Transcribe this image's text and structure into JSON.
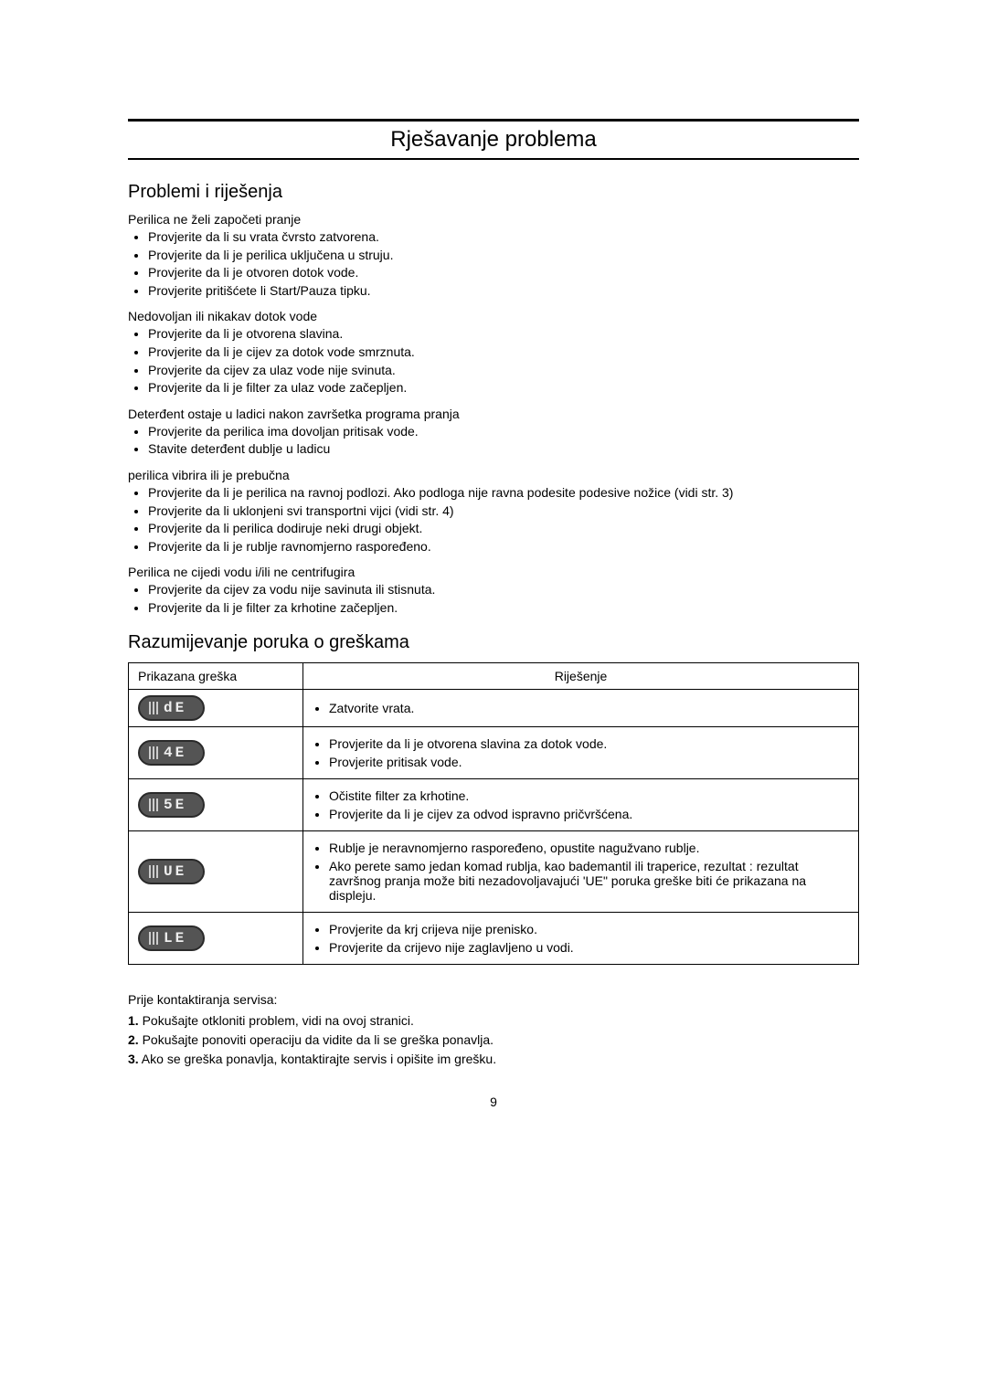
{
  "pageTitle": "Rješavanje problema",
  "section1": {
    "heading": "Problemi i riješenja",
    "problems": [
      {
        "title": "Perilica ne želi započeti pranje",
        "items": [
          "Provjerite da li su vrata čvrsto zatvorena.",
          "Provjerite da   li je perilica uključena u struju.",
          "Provjerite da li je otvoren dotok vode.",
          "Provjerite pritišćete li Start/Pauza tipku."
        ]
      },
      {
        "title": "Nedovoljan ili nikakav dotok vode",
        "items": [
          "Provjerite da li je otvorena slavina.",
          "Provjerite da li je cijev za dotok vode smrznuta.",
          "Provjerite da cijev za ulaz vode nije svinuta.",
          "Provjerite da li je filter za ulaz vode začepljen."
        ]
      },
      {
        "title": "Deterđent ostaje u ladici nakon završetka programa pranja",
        "items": [
          "Provjerite da perilica ima dovoljan pritisak vode.",
          "Stavite deterđent dublje u ladicu"
        ]
      },
      {
        "title": "perilica vibrira ili je prebučna",
        "items": [
          "Provjerite da li je perilica na ravnoj podlozi. Ako podloga nije ravna podesite podesive nožice (vidi str. 3)",
          "Provjerite da li uklonjeni svi transportni vijci (vidi str. 4)",
          "Provjerite da li perilica dodiruje neki drugi objekt.",
          "Provjerite da li je rublje ravnomjerno raspoređeno."
        ]
      },
      {
        "title": "Perilica ne cijedi vodu i/ili ne centrifugira",
        "items": [
          "Provjerite da cijev za vodu nije savinuta ili stisnuta.",
          "Provjerite da li je filter za krhotine začepljen."
        ]
      }
    ]
  },
  "section2": {
    "heading": "Razumijevanje poruka o greškama",
    "tableHeaders": {
      "error": "Prikazana greška",
      "solution": "Riješenje"
    },
    "rows": [
      {
        "code": "dE",
        "solutions": [
          "Zatvorite vrata."
        ]
      },
      {
        "code": "4E",
        "solutions": [
          "Provjerite da li je otvorena slavina za dotok vode.",
          "Provjerite pritisak vode."
        ]
      },
      {
        "code": "5E",
        "solutions": [
          "Očistite filter za krhotine.",
          "Provjerite da li je cijev za odvod ispravno pričvršćena."
        ]
      },
      {
        "code": "UE",
        "solutions": [
          "Rublje je neravnomjerno raspoređeno, opustite nagužvano rublje.",
          "Ako perete samo jedan komad rublja, kao bademantil ili traperice, rezultat : rezultat završnog pranja može biti nezadovoljavajući 'UE\" poruka greške biti će prikazana na displeju."
        ]
      },
      {
        "code": "LE",
        "solutions": [
          "Provjerite da krj crijeva nije prenisko.",
          "Provjerite da crijevo nije zaglavljeno u vodi."
        ]
      }
    ]
  },
  "footer": {
    "lead": "Prije kontaktiranja servisa:",
    "steps": [
      "Pokušajte otkloniti problem, vidi na ovoj stranici.",
      "Pokušajte ponoviti operaciju da vidite da li se greška ponavlja.",
      "Ako se greška ponavlja, kontaktirajte servis i opišite im grešku."
    ]
  },
  "pageNumber": "9"
}
